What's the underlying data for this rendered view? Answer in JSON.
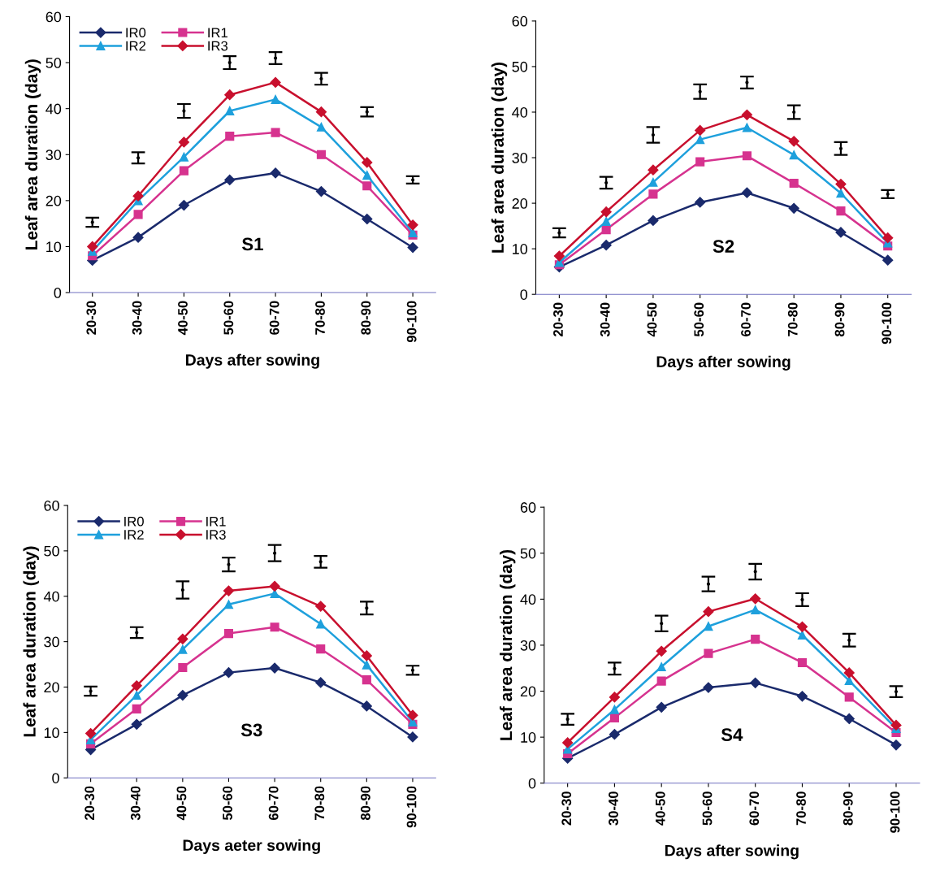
{
  "chart_data": [
    {
      "type": "line",
      "categories": [
        "20-30",
        "30-40",
        "40-50",
        "50-60",
        "60-70",
        "70-80",
        "80-90",
        "90-100"
      ],
      "xlabel": "Days after sowing",
      "ylabel": "Leaf area duration (day)",
      "ylim": [
        0,
        60
      ],
      "yticks": [
        0,
        10,
        20,
        30,
        40,
        50,
        60
      ],
      "legend": "top left",
      "annotations": [
        "S1"
      ],
      "series": [
        {
          "name": "IR0",
          "color": "#1a2a6c",
          "marker": "diamond",
          "values": [
            7,
            12,
            19,
            24.5,
            26,
            22,
            16,
            9.8
          ]
        },
        {
          "name": "IR1",
          "color": "#d6338f",
          "marker": "square",
          "values": [
            8,
            17,
            26.5,
            34,
            34.8,
            30,
            23.2,
            12.5
          ]
        },
        {
          "name": "IR2",
          "color": "#1ea0dc",
          "marker": "triangle",
          "values": [
            9,
            20,
            29.5,
            39.5,
            42,
            36,
            25.5,
            13
          ]
        },
        {
          "name": "IR3",
          "color": "#c8102e",
          "marker": "diamond",
          "values": [
            10,
            21,
            32.7,
            43,
            45.7,
            39.3,
            28.3,
            14.7
          ]
        },
        {
          "type": "scatter",
          "color": "#000000",
          "marker": "none",
          "values": [
            15.3,
            29.3,
            39.5,
            50,
            51,
            46.5,
            39.3,
            24.5
          ],
          "errors": [
            1,
            1.2,
            1.5,
            1.4,
            1.3,
            1.3,
            1,
            0.8
          ]
        }
      ]
    },
    {
      "type": "line",
      "categories": [
        "20-30",
        "30-40",
        "40-50",
        "50-60",
        "60-70",
        "70-80",
        "80-90",
        "90-100"
      ],
      "xlabel": "Days after sowing",
      "ylabel": "Leaf area duration (day)",
      "ylim": [
        0,
        60
      ],
      "yticks": [
        0,
        10,
        20,
        30,
        40,
        50,
        60
      ],
      "annotations": [
        "S2"
      ],
      "series": [
        {
          "color": "#1a2a6c",
          "marker": "diamond",
          "values": [
            6,
            10.8,
            16.2,
            20.2,
            22.3,
            18.9,
            13.6,
            7.5
          ]
        },
        {
          "color": "#d6338f",
          "marker": "square",
          "values": [
            6.5,
            14.2,
            22,
            29.1,
            30.4,
            24.4,
            18.3,
            10.6
          ]
        },
        {
          "color": "#1ea0dc",
          "marker": "triangle",
          "values": [
            7,
            16,
            24.6,
            34,
            36.6,
            30.6,
            22.2,
            11.3
          ]
        },
        {
          "color": "#c8102e",
          "marker": "diamond",
          "values": [
            8.4,
            18.1,
            27.3,
            36,
            39.4,
            33.6,
            24.2,
            12.4
          ]
        },
        {
          "type": "scatter",
          "color": "#000000",
          "marker": "none",
          "values": [
            13.5,
            24.5,
            35,
            44.5,
            46.5,
            40,
            32,
            22
          ],
          "errors": [
            1,
            1.3,
            1.7,
            1.6,
            1.3,
            1.5,
            1.4,
            0.9
          ]
        }
      ]
    },
    {
      "type": "line",
      "categories": [
        "20-30",
        "30-40",
        "40-50",
        "50-60",
        "60-70",
        "70-80",
        "80-90",
        "90-100"
      ],
      "xlabel": "Days aeter sowing",
      "ylabel": "Leaf area duration (day)",
      "ylim": [
        0,
        60
      ],
      "yticks": [
        0,
        10,
        20,
        30,
        40,
        50,
        60
      ],
      "legend": "top left",
      "annotations": [
        "S3"
      ],
      "series": [
        {
          "name": "IR0",
          "color": "#1a2a6c",
          "marker": "diamond",
          "values": [
            6.2,
            11.8,
            18.2,
            23.2,
            24.2,
            21,
            15.8,
            9
          ]
        },
        {
          "name": "IR1",
          "color": "#d6338f",
          "marker": "square",
          "values": [
            7.5,
            15.2,
            24.3,
            31.8,
            33.2,
            28.4,
            21.6,
            11.8
          ]
        },
        {
          "name": "IR2",
          "color": "#1ea0dc",
          "marker": "triangle",
          "values": [
            8.4,
            18.2,
            28.3,
            38.2,
            40.6,
            33.9,
            24.9,
            12.3
          ]
        },
        {
          "name": "IR3",
          "color": "#c8102e",
          "marker": "diamond",
          "values": [
            9.8,
            20.3,
            30.6,
            41.2,
            42.2,
            37.8,
            26.9,
            13.8
          ]
        },
        {
          "type": "scatter",
          "color": "#000000",
          "marker": "none",
          "values": [
            19.1,
            32,
            41.4,
            47,
            49.5,
            47.6,
            37.4,
            23.7
          ],
          "errors": [
            1,
            1.2,
            1.9,
            1.5,
            1.8,
            1.3,
            1.4,
            1
          ]
        }
      ]
    },
    {
      "type": "line",
      "categories": [
        "20-30",
        "30-40",
        "40-50",
        "50-60",
        "60-70",
        "70-80",
        "80-90",
        "90-100"
      ],
      "xlabel": "Days after sowing",
      "ylabel": "Leaf area duration (day)",
      "ylim": [
        0,
        60
      ],
      "yticks": [
        0,
        10,
        20,
        30,
        40,
        50,
        60
      ],
      "annotations": [
        "S4"
      ],
      "series": [
        {
          "color": "#1a2a6c",
          "marker": "diamond",
          "values": [
            5.4,
            10.6,
            16.5,
            20.8,
            21.8,
            18.9,
            14,
            8.3
          ]
        },
        {
          "color": "#d6338f",
          "marker": "square",
          "values": [
            6.4,
            14.2,
            22.2,
            28.2,
            31.3,
            26.2,
            18.7,
            11
          ]
        },
        {
          "color": "#1ea0dc",
          "marker": "triangle",
          "values": [
            7.4,
            16,
            25.3,
            34.1,
            37.7,
            32.2,
            22.3,
            11.9
          ]
        },
        {
          "color": "#c8102e",
          "marker": "diamond",
          "values": [
            8.8,
            18.7,
            28.7,
            37.3,
            40.1,
            34,
            24,
            12.6
          ]
        },
        {
          "type": "scatter",
          "color": "#000000",
          "marker": "none",
          "values": [
            13.9,
            24.9,
            34.7,
            43.3,
            46,
            39.9,
            31.1,
            19.9
          ],
          "errors": [
            1.2,
            1.3,
            1.7,
            1.6,
            1.7,
            1.4,
            1.4,
            1.2
          ]
        }
      ]
    }
  ]
}
